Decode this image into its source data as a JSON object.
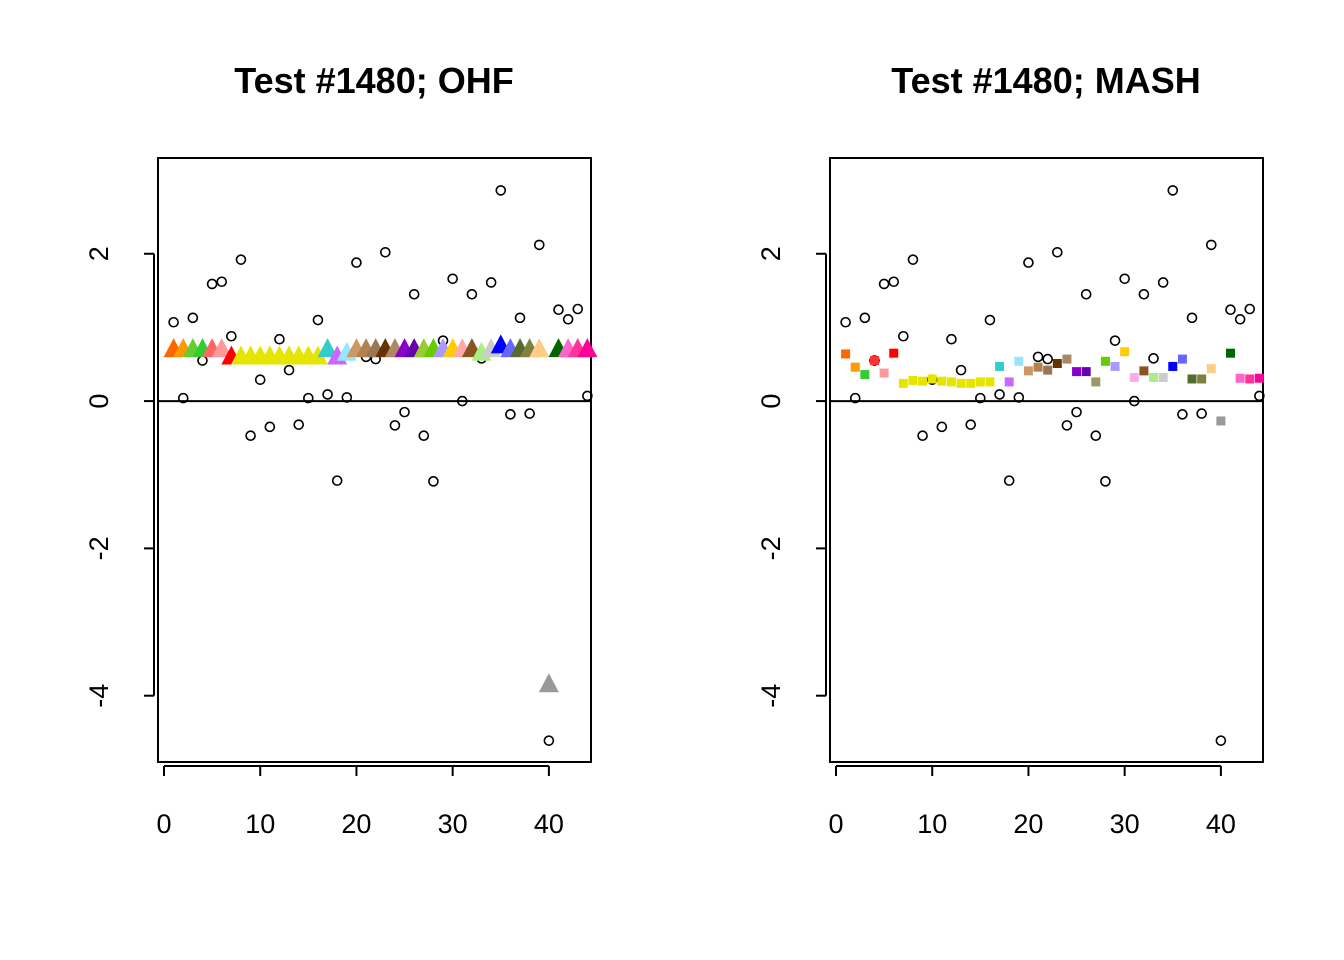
{
  "chart_data": [
    {
      "type": "scatter",
      "title": "Test #1480; OHF",
      "xlabel": "",
      "ylabel": "",
      "xlim": [
        0,
        45
      ],
      "ylim": [
        -4.9,
        3.3
      ],
      "x_ticks": [
        "0",
        "10",
        "20",
        "30",
        "40"
      ],
      "y_ticks": [
        "-4",
        "-2",
        "0",
        "2"
      ],
      "reference_line_y": 0,
      "grid": false,
      "series": [
        {
          "marker": "open-circle",
          "color": "#000000",
          "x": [
            1,
            2,
            3,
            4,
            5,
            6,
            7,
            8,
            9,
            10,
            11,
            12,
            13,
            14,
            15,
            16,
            17,
            18,
            19,
            20,
            21,
            22,
            23,
            24,
            25,
            26,
            27,
            28,
            29,
            30,
            31,
            32,
            33,
            34,
            35,
            36,
            37,
            38,
            39,
            40,
            41,
            42,
            43,
            44
          ],
          "y": [
            1.07,
            0.04,
            1.13,
            0.55,
            1.59,
            1.62,
            0.88,
            1.92,
            -0.47,
            0.29,
            -0.35,
            0.84,
            0.42,
            -0.32,
            0.04,
            1.1,
            0.09,
            -1.08,
            0.05,
            1.88,
            0.6,
            0.57,
            2.02,
            -0.33,
            -0.15,
            1.45,
            -0.47,
            -1.09,
            0.82,
            1.66,
            0.0,
            1.45,
            0.58,
            1.61,
            2.86,
            -0.18,
            1.13,
            -0.17,
            2.12,
            -4.61,
            1.24,
            1.11,
            1.25,
            0.07
          ]
        },
        {
          "marker": "filled-triangle",
          "x": [
            1,
            2,
            3,
            4,
            5,
            6,
            7,
            8,
            9,
            10,
            11,
            12,
            13,
            14,
            15,
            16,
            17,
            18,
            19,
            20,
            21,
            22,
            23,
            24,
            25,
            26,
            27,
            28,
            29,
            30,
            31,
            32,
            33,
            34,
            35,
            36,
            37,
            38,
            39,
            40,
            41,
            42,
            43,
            44
          ],
          "y": [
            0.7,
            0.7,
            0.7,
            0.7,
            0.7,
            0.7,
            0.6,
            0.6,
            0.6,
            0.6,
            0.6,
            0.6,
            0.6,
            0.6,
            0.6,
            0.6,
            0.7,
            0.6,
            0.65,
            0.7,
            0.7,
            0.7,
            0.7,
            0.7,
            0.7,
            0.7,
            0.7,
            0.7,
            0.7,
            0.7,
            0.7,
            0.7,
            0.65,
            0.7,
            0.75,
            0.7,
            0.7,
            0.7,
            0.7,
            -3.85,
            0.7,
            0.7,
            0.7,
            0.7
          ],
          "colors": [
            "#ff6600",
            "#ff9900",
            "#66cc33",
            "#33cc33",
            "#ff6666",
            "#ff9999",
            "#ff0000",
            "#e5e500",
            "#e5e500",
            "#e5e500",
            "#e5e500",
            "#e5e500",
            "#e5e500",
            "#e5e500",
            "#e5e500",
            "#e5e500",
            "#33cccc",
            "#cc66ff",
            "#99e5ff",
            "#cc9966",
            "#b38050",
            "#997755",
            "#663300",
            "#aa8866",
            "#8800cc",
            "#6600aa",
            "#99cc33",
            "#66cc00",
            "#aa99ff",
            "#ffcc00",
            "#ffaaaa",
            "#885522",
            "#aaee88",
            "#cccccc",
            "#0000ff",
            "#6666ff",
            "#556b2f",
            "#808040",
            "#ffcc88",
            "#999999",
            "#006600",
            "#ff66cc",
            "#ff3399",
            "#ff0099"
          ]
        }
      ]
    },
    {
      "type": "scatter",
      "title": "Test #1480; MASH",
      "xlabel": "",
      "ylabel": "",
      "xlim": [
        0,
        45
      ],
      "ylim": [
        -4.9,
        3.3
      ],
      "x_ticks": [
        "0",
        "10",
        "20",
        "30",
        "40"
      ],
      "y_ticks": [
        "-4",
        "-2",
        "0",
        "2"
      ],
      "reference_line_y": 0,
      "grid": false,
      "series": [
        {
          "marker": "open-circle",
          "color": "#000000",
          "x": [
            1,
            2,
            3,
            4,
            5,
            6,
            7,
            8,
            9,
            10,
            11,
            12,
            13,
            14,
            15,
            16,
            17,
            18,
            19,
            20,
            21,
            22,
            23,
            24,
            25,
            26,
            27,
            28,
            29,
            30,
            31,
            32,
            33,
            34,
            35,
            36,
            37,
            38,
            39,
            40,
            41,
            42,
            43,
            44
          ],
          "y": [
            1.07,
            0.04,
            1.13,
            0.55,
            1.59,
            1.62,
            0.88,
            1.92,
            -0.47,
            0.29,
            -0.35,
            0.84,
            0.42,
            -0.32,
            0.04,
            1.1,
            0.09,
            -1.08,
            0.05,
            1.88,
            0.6,
            0.57,
            2.02,
            -0.33,
            -0.15,
            1.45,
            -0.47,
            -1.09,
            0.82,
            1.66,
            0.0,
            1.45,
            0.58,
            1.61,
            2.86,
            -0.18,
            1.13,
            -0.17,
            2.12,
            -4.61,
            1.24,
            1.11,
            1.25,
            0.07
          ]
        },
        {
          "marker": "filled-square",
          "x": [
            1,
            2,
            3,
            4,
            5,
            6,
            7,
            8,
            9,
            10,
            11,
            12,
            13,
            14,
            15,
            16,
            17,
            18,
            19,
            20,
            21,
            22,
            23,
            24,
            25,
            26,
            27,
            28,
            29,
            30,
            31,
            32,
            33,
            34,
            35,
            36,
            37,
            38,
            39,
            40,
            41,
            42,
            43,
            44
          ],
          "y": [
            0.64,
            0.46,
            0.36,
            0.55,
            0.38,
            0.65,
            0.24,
            0.28,
            0.27,
            0.3,
            0.27,
            0.26,
            0.24,
            0.24,
            0.26,
            0.26,
            0.47,
            0.26,
            0.54,
            0.41,
            0.46,
            0.42,
            0.51,
            0.57,
            0.4,
            0.4,
            0.26,
            0.54,
            0.47,
            0.67,
            0.32,
            0.41,
            0.32,
            0.32,
            0.47,
            0.57,
            0.3,
            0.3,
            0.44,
            -0.27,
            0.65,
            0.31,
            0.3,
            0.31
          ],
          "colors": [
            "#ff6600",
            "#ff9900",
            "#33cc33",
            "#ff3333",
            "#ff9999",
            "#ff0000",
            "#e5e500",
            "#e5e500",
            "#e5e500",
            "#e5e500",
            "#e5e500",
            "#e5e500",
            "#e5e500",
            "#e5e500",
            "#e5e500",
            "#e5e500",
            "#33cccc",
            "#cc66ff",
            "#99e5ff",
            "#cc9966",
            "#b38050",
            "#997755",
            "#663300",
            "#aa8866",
            "#8800cc",
            "#6600aa",
            "#999966",
            "#66cc00",
            "#aa99ff",
            "#ffcc00",
            "#ffaaee",
            "#885522",
            "#aaee88",
            "#cccccc",
            "#0000ff",
            "#6666ff",
            "#556b2f",
            "#808040",
            "#ffcc88",
            "#999999",
            "#006600",
            "#ff66cc",
            "#ff3399",
            "#ff0099"
          ]
        }
      ]
    }
  ]
}
